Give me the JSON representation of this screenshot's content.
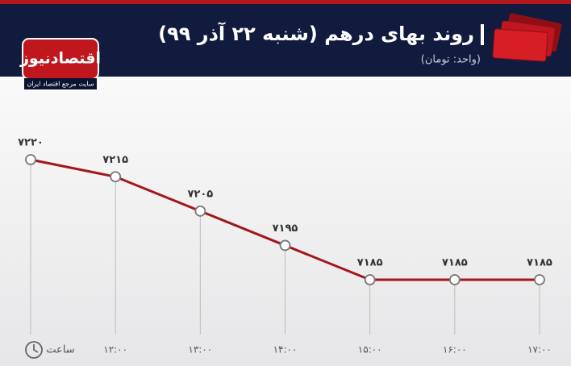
{
  "header": {
    "title": "روند بهای درهم (شنبه ۲۲ آذر ۹۹)",
    "subtitle": "(واحد: تومان)"
  },
  "logo": {
    "name": "اقتصادنیوز",
    "tagline": "سایت مرجع اقتصاد ایران"
  },
  "chart_data": {
    "type": "line",
    "x_label": "ساعت",
    "color": "#a3161b",
    "categories": [
      null,
      "۱۲:۰۰",
      "۱۳:۰۰",
      "۱۴:۰۰",
      "۱۵:۰۰",
      "۱۶:۰۰",
      "۱۷:۰۰"
    ],
    "values": [
      7220,
      7215,
      7205,
      7195,
      7185,
      7185,
      7185
    ],
    "value_labels": [
      "۷۲۲۰",
      "۷۲۱۵",
      "۷۲۰۵",
      "۷۱۹۵",
      "۷۱۸۵",
      "۷۱۸۵",
      "۷۱۸۵"
    ]
  }
}
